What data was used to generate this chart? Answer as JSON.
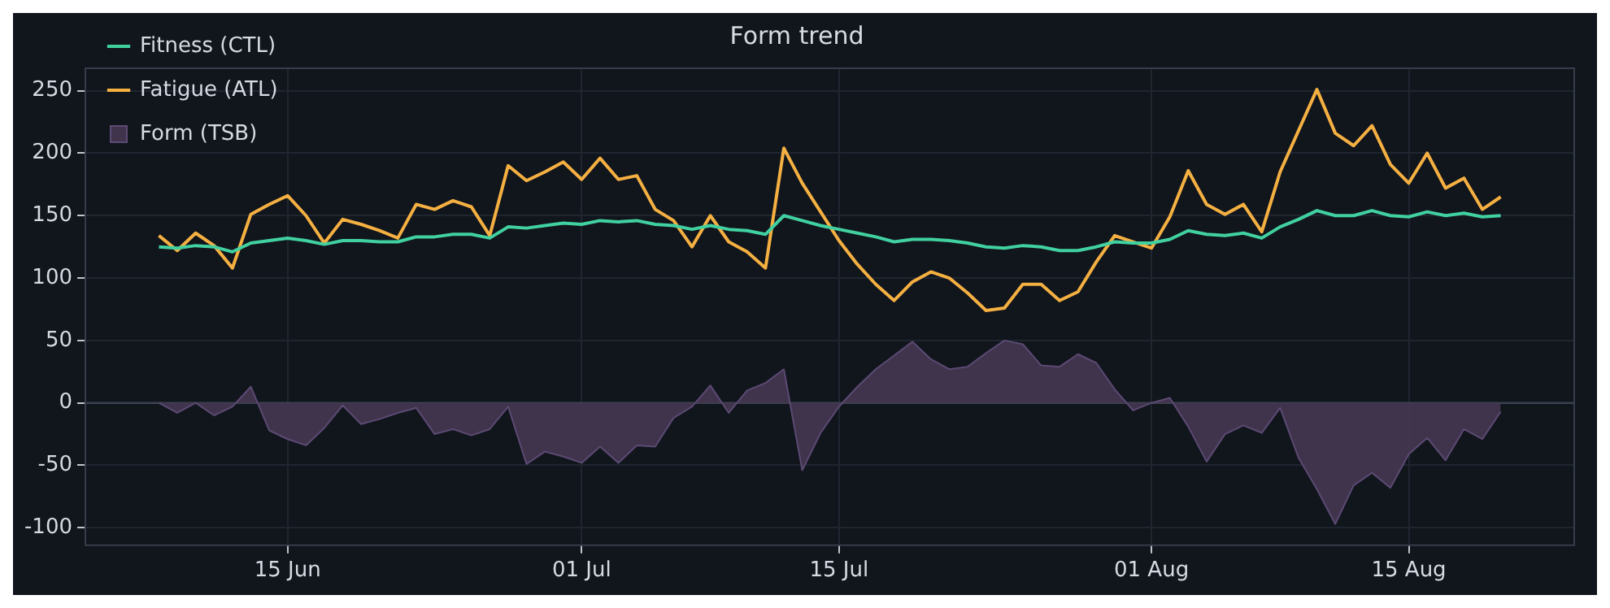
{
  "chart_data": {
    "type": "line",
    "title": "Form trend",
    "x": [
      "--06-08",
      "--06-09",
      "--06-10",
      "--06-11",
      "--06-12",
      "--06-13",
      "--06-14",
      "--06-15",
      "--06-16",
      "--06-17",
      "--06-18",
      "--06-19",
      "--06-20",
      "--06-21",
      "--06-22",
      "--06-23",
      "--06-24",
      "--06-25",
      "--06-26",
      "--06-27",
      "--06-28",
      "--06-29",
      "--06-30",
      "--07-01",
      "--07-02",
      "--07-03",
      "--07-04",
      "--07-05",
      "--07-06",
      "--07-07",
      "--07-08",
      "--07-09",
      "--07-10",
      "--07-11",
      "--07-12",
      "--07-13",
      "--07-14",
      "--07-15",
      "--07-16",
      "--07-17",
      "--07-18",
      "--07-19",
      "--07-20",
      "--07-21",
      "--07-22",
      "--07-23",
      "--07-24",
      "--07-25",
      "--07-26",
      "--07-27",
      "--07-28",
      "--07-29",
      "--07-30",
      "--07-31",
      "--08-01",
      "--08-02",
      "--08-03",
      "--08-04",
      "--08-05",
      "--08-06",
      "--08-07",
      "--08-08",
      "--08-09",
      "--08-10",
      "--08-11",
      "--08-12",
      "--08-13",
      "--08-14",
      "--08-15",
      "--08-16",
      "--08-17",
      "--08-18",
      "--08-19",
      "--08-20"
    ],
    "series": [
      {
        "name": "Fitness (CTL)",
        "color": "#41d1a0",
        "values": [
          125,
          124,
          126,
          125,
          121,
          128,
          130,
          132,
          130,
          127,
          130,
          130,
          129,
          129,
          133,
          133,
          135,
          135,
          132,
          141,
          140,
          142,
          144,
          143,
          146,
          145,
          146,
          143,
          142,
          139,
          142,
          139,
          138,
          135,
          150,
          146,
          142,
          139,
          136,
          133,
          129,
          131,
          131,
          130,
          128,
          125,
          124,
          126,
          125,
          122,
          122,
          125,
          129,
          128,
          128,
          131,
          138,
          135,
          134,
          136,
          132,
          141,
          147,
          154,
          150,
          150,
          154,
          150,
          149,
          153,
          150,
          152,
          149,
          150
        ]
      },
      {
        "name": "Fatigue (ATL)",
        "color": "#f5b042",
        "values": [
          134,
          122,
          136,
          126,
          108,
          151,
          159,
          166,
          150,
          128,
          147,
          143,
          138,
          132,
          159,
          155,
          162,
          157,
          134,
          190,
          178,
          185,
          193,
          179,
          196,
          179,
          182,
          155,
          146,
          125,
          150,
          129,
          121,
          108,
          204,
          176,
          153,
          130,
          111,
          95,
          82,
          97,
          105,
          100,
          88,
          74,
          76,
          95,
          95,
          82,
          89,
          113,
          134,
          129,
          124,
          149,
          186,
          159,
          151,
          159,
          137,
          185,
          218,
          251,
          216,
          206,
          222,
          191,
          176,
          200,
          172,
          180,
          155,
          165
        ]
      },
      {
        "name": "Form (TSB)",
        "type": "area",
        "color": "#433650",
        "values": [
          0,
          -8,
          0,
          -10,
          -3,
          13,
          -22,
          -29,
          -34,
          -20,
          -2,
          -17,
          -13,
          -8,
          -4,
          -25,
          -21,
          -26,
          -21,
          -3,
          -49,
          -39,
          -43,
          -48,
          -35,
          -48,
          -34,
          -35,
          -12,
          -3,
          14,
          -8,
          10,
          16,
          27,
          -54,
          -24,
          -3,
          13,
          27,
          38,
          49,
          35,
          27,
          29,
          40,
          50,
          47,
          30,
          29,
          39,
          32,
          11,
          -6,
          0,
          4,
          -19,
          -47,
          -25,
          -18,
          -24,
          -4,
          -44,
          -69,
          -97,
          -66,
          -56,
          -68,
          -41,
          -28,
          -46,
          -21,
          -29,
          -7
        ]
      }
    ],
    "xlim": [
      "--06-04",
      "--08-24"
    ],
    "xticks": [
      {
        "value": "--06-15",
        "label": "15 Jun"
      },
      {
        "value": "--07-01",
        "label": "01 Jul"
      },
      {
        "value": "--07-15",
        "label": "15 Jul"
      },
      {
        "value": "--08-01",
        "label": "01 Aug"
      },
      {
        "value": "--08-15",
        "label": "15 Aug"
      }
    ],
    "ylim": [
      -114,
      268
    ],
    "yticks": [
      -100,
      -50,
      0,
      50,
      100,
      150,
      200,
      250
    ],
    "ref_lines": [
      {
        "axis": "y",
        "value": 0,
        "color": "#3a4250"
      }
    ],
    "grid": true,
    "legend": "top left"
  }
}
